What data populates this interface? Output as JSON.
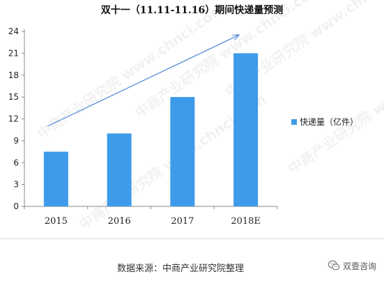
{
  "page": {
    "title": "双十一（11.11-11.16）期间快递量预测"
  },
  "chart_data": {
    "type": "bar",
    "categories": [
      "2015",
      "2016",
      "2017",
      "2018E"
    ],
    "series": [
      {
        "name": "快递量（亿件）",
        "values": [
          7.5,
          10,
          15,
          21
        ],
        "color": "#3d9be9"
      }
    ],
    "yticks": [
      "0",
      "3",
      "6",
      "9",
      "12",
      "15",
      "18",
      "21",
      "24"
    ],
    "ylim": [
      0,
      24
    ],
    "grid": false,
    "legend": "right",
    "trend_arrow": {
      "from": {
        "x": "2015",
        "y": 11
      },
      "to": {
        "x": "2018E",
        "y": 23.5
      },
      "color": "#5b8fd6"
    }
  },
  "legend": {
    "label": "快递量（亿件）",
    "color": "#3d9be9"
  },
  "footer": {
    "source": "数据来源：中商产业研究院整理",
    "brand": "双壹咨询"
  },
  "watermark": {
    "text": "中商产业研究院 www.chnci.com"
  }
}
